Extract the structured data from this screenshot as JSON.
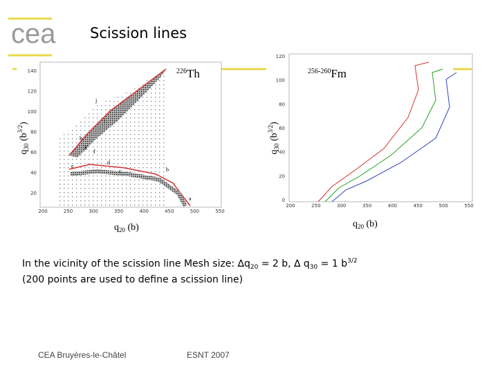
{
  "header": {
    "logo": "cea",
    "title": "Scission lines"
  },
  "plots": [
    {
      "nucleus_mass": "226",
      "nucleus": "Th",
      "ylabel": {
        "q": "q",
        "sub": "30",
        "unit": " (b",
        "sup": "3/2",
        "close": ")"
      },
      "xlabel": {
        "q": "q",
        "sub": "20",
        "unit": " (b)"
      },
      "yticks": [
        20,
        40,
        60,
        80,
        100,
        120,
        140
      ],
      "xticks": [
        200,
        250,
        300,
        350,
        400,
        450,
        500,
        550
      ],
      "point_labels": [
        "a",
        "b",
        "c",
        "d",
        "e",
        "f",
        "g",
        "h",
        "i",
        "j"
      ]
    },
    {
      "nucleus_mass": "256-260",
      "nucleus": "Fm",
      "ylabel": {
        "q": "q",
        "sub": "30",
        "unit": " (b",
        "sup": "3/2",
        "close": ")"
      },
      "xlabel": {
        "q": "q",
        "sub": "20",
        "unit": " (b)"
      },
      "yticks": [
        0,
        20,
        40,
        60,
        80,
        100,
        120
      ],
      "xticks": [
        200,
        250,
        300,
        350,
        400,
        450,
        500,
        550
      ]
    }
  ],
  "body": {
    "line1": [
      "In the vicinity of the scission line Mesh size: ∆q",
      "20",
      " = 2 b, ∆ q",
      "30",
      " = 1 b",
      "3/2"
    ],
    "line2": "(200 points are used to define a scission line)"
  },
  "footer": {
    "left": "CEA Bruyères-le-Châtel",
    "center": "ESNT 2007"
  }
}
